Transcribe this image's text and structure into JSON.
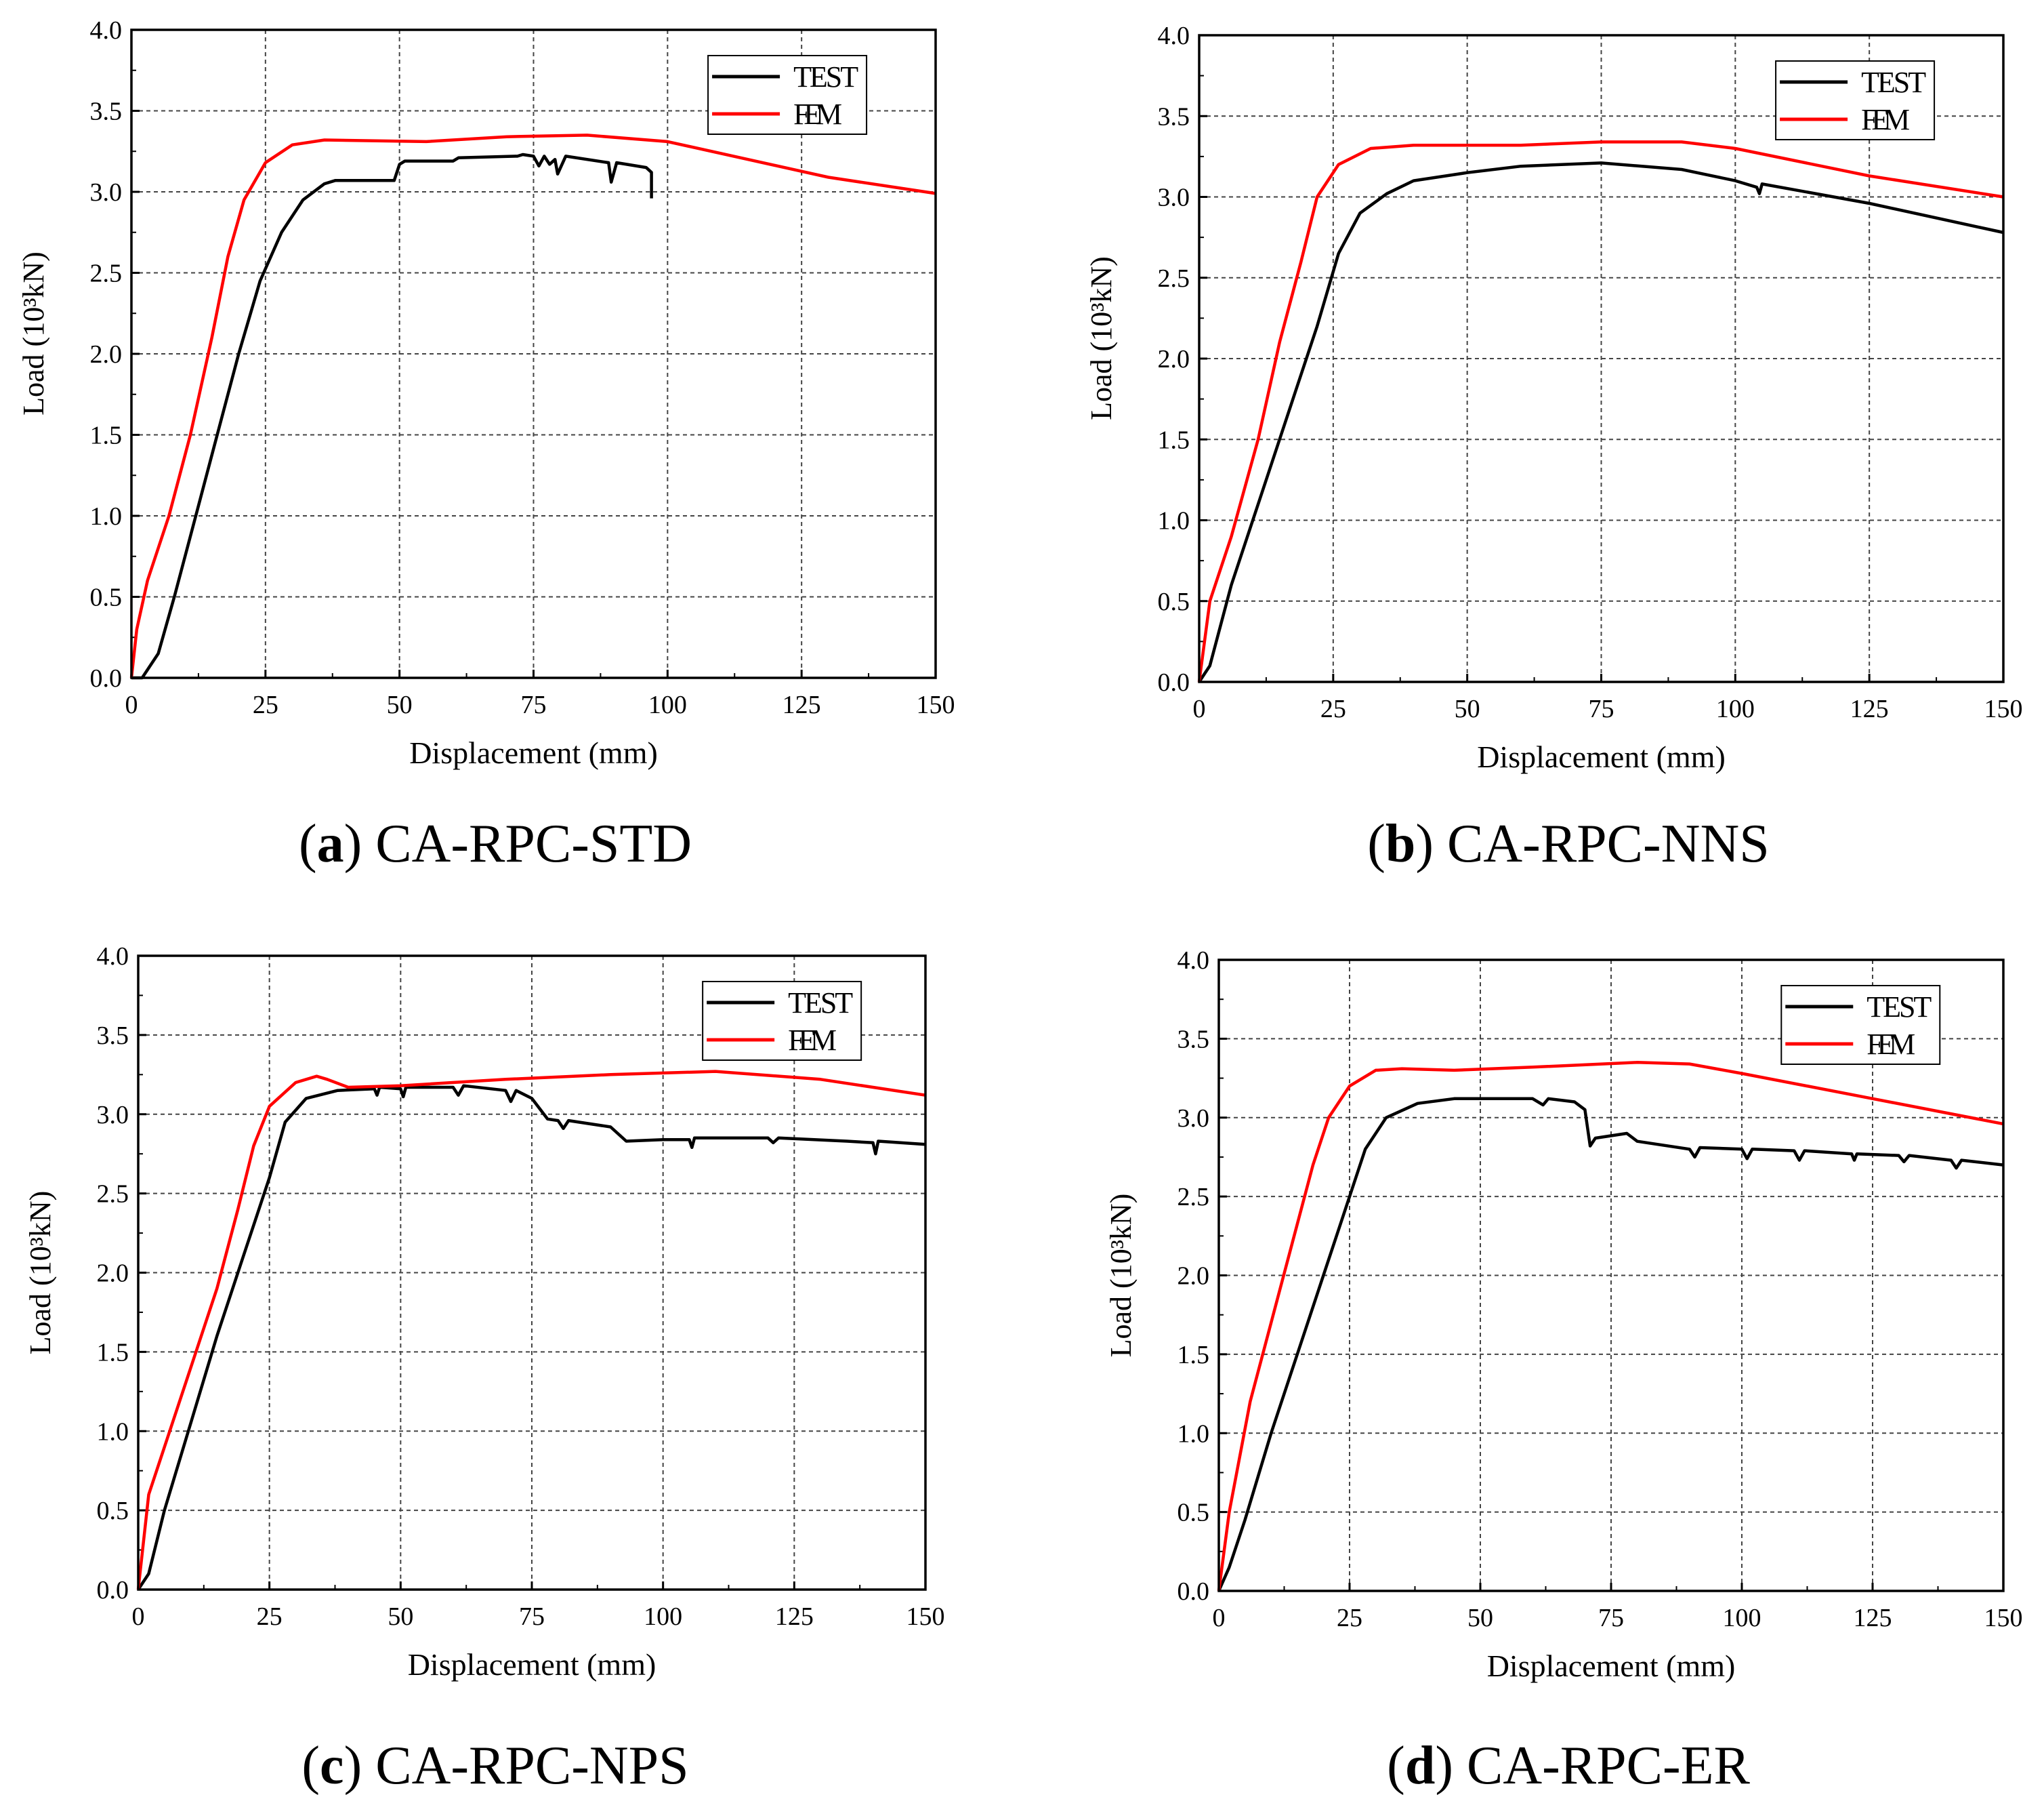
{
  "chart_data": [
    {
      "type": "line",
      "caption_letter": "a",
      "caption": "CA-RPC-STD",
      "xlabel": "Displacement (mm)",
      "ylabel": "Load (10³kN)",
      "xlim": [
        0,
        150
      ],
      "ylim": [
        0,
        4
      ],
      "xticks": [
        "0",
        "25",
        "50",
        "75",
        "100",
        "125",
        "150"
      ],
      "yticks": [
        "0.0",
        "0.5",
        "1.0",
        "1.5",
        "2.0",
        "2.5",
        "3.0",
        "3.5",
        "4.0"
      ],
      "grid": true,
      "legend": "top-right",
      "series": [
        {
          "name": "TEST",
          "color": "#000000",
          "points": [
            [
              0,
              0
            ],
            [
              2,
              0
            ],
            [
              5,
              0.15
            ],
            [
              8,
              0.5
            ],
            [
              12,
              1.0
            ],
            [
              16,
              1.5
            ],
            [
              20,
              2.0
            ],
            [
              24,
              2.45
            ],
            [
              28,
              2.75
            ],
            [
              32,
              2.95
            ],
            [
              36,
              3.05
            ],
            [
              38,
              3.07
            ],
            [
              49,
              3.07
            ],
            [
              50,
              3.17
            ],
            [
              51,
              3.19
            ],
            [
              60,
              3.19
            ],
            [
              61,
              3.21
            ],
            [
              72,
              3.22
            ],
            [
              73,
              3.23
            ],
            [
              75,
              3.22
            ],
            [
              76,
              3.16
            ],
            [
              77,
              3.22
            ],
            [
              78,
              3.17
            ],
            [
              79,
              3.2
            ],
            [
              79.5,
              3.11
            ],
            [
              81,
              3.22
            ],
            [
              89,
              3.18
            ],
            [
              89.5,
              3.06
            ],
            [
              90.5,
              3.18
            ],
            [
              96,
              3.15
            ],
            [
              97,
              3.12
            ],
            [
              97,
              2.96
            ]
          ]
        },
        {
          "name": "FEM",
          "color": "#ff0000",
          "points": [
            [
              0,
              0
            ],
            [
              1,
              0.3
            ],
            [
              3,
              0.6
            ],
            [
              7,
              1.0
            ],
            [
              11,
              1.5
            ],
            [
              15,
              2.1
            ],
            [
              18,
              2.6
            ],
            [
              21,
              2.95
            ],
            [
              25,
              3.18
            ],
            [
              30,
              3.29
            ],
            [
              36,
              3.32
            ],
            [
              55,
              3.31
            ],
            [
              70,
              3.34
            ],
            [
              85,
              3.35
            ],
            [
              100,
              3.31
            ],
            [
              115,
              3.2
            ],
            [
              130,
              3.09
            ],
            [
              150,
              2.99
            ]
          ]
        }
      ]
    },
    {
      "type": "line",
      "caption_letter": "b",
      "caption": "CA-RPC-NNS",
      "xlabel": "Displacement (mm)",
      "ylabel": "Load (10³kN)",
      "xlim": [
        0,
        150
      ],
      "ylim": [
        0,
        4
      ],
      "xticks": [
        "0",
        "25",
        "50",
        "75",
        "100",
        "125",
        "150"
      ],
      "yticks": [
        "0.0",
        "0.5",
        "1.0",
        "1.5",
        "2.0",
        "2.5",
        "3.0",
        "3.5",
        "4.0"
      ],
      "grid": true,
      "legend": "top-right",
      "series": [
        {
          "name": "TEST",
          "color": "#000000",
          "points": [
            [
              0,
              0
            ],
            [
              2,
              0.1
            ],
            [
              6,
              0.6
            ],
            [
              12,
              1.2
            ],
            [
              18,
              1.8
            ],
            [
              22,
              2.2
            ],
            [
              26,
              2.65
            ],
            [
              30,
              2.9
            ],
            [
              35,
              3.02
            ],
            [
              40,
              3.1
            ],
            [
              50,
              3.15
            ],
            [
              60,
              3.19
            ],
            [
              75,
              3.21
            ],
            [
              90,
              3.17
            ],
            [
              100,
              3.1
            ],
            [
              104,
              3.06
            ],
            [
              104.5,
              3.02
            ],
            [
              105,
              3.08
            ],
            [
              125,
              2.96
            ],
            [
              150,
              2.78
            ]
          ]
        },
        {
          "name": "FEM",
          "color": "#ff0000",
          "points": [
            [
              0,
              0
            ],
            [
              2,
              0.5
            ],
            [
              6,
              0.9
            ],
            [
              11,
              1.5
            ],
            [
              15,
              2.1
            ],
            [
              19,
              2.6
            ],
            [
              22,
              3.0
            ],
            [
              26,
              3.2
            ],
            [
              32,
              3.3
            ],
            [
              40,
              3.32
            ],
            [
              60,
              3.32
            ],
            [
              75,
              3.34
            ],
            [
              90,
              3.34
            ],
            [
              100,
              3.3
            ],
            [
              125,
              3.13
            ],
            [
              150,
              3.0
            ]
          ]
        }
      ]
    },
    {
      "type": "line",
      "caption_letter": "c",
      "caption": "CA-RPC-NPS",
      "xlabel": "Displacement (mm)",
      "ylabel": "Load (10³kN)",
      "xlim": [
        0,
        150
      ],
      "ylim": [
        0,
        4
      ],
      "xticks": [
        "0",
        "25",
        "50",
        "75",
        "100",
        "125",
        "150"
      ],
      "yticks": [
        "0.0",
        "0.5",
        "1.0",
        "1.5",
        "2.0",
        "2.5",
        "3.0",
        "3.5",
        "4.0"
      ],
      "grid": true,
      "legend": "top-right",
      "series": [
        {
          "name": "TEST",
          "color": "#000000",
          "points": [
            [
              0,
              0
            ],
            [
              2,
              0.1
            ],
            [
              5,
              0.5
            ],
            [
              10,
              1.05
            ],
            [
              15,
              1.6
            ],
            [
              20,
              2.1
            ],
            [
              25,
              2.6
            ],
            [
              28,
              2.95
            ],
            [
              32,
              3.1
            ],
            [
              38,
              3.15
            ],
            [
              45,
              3.16
            ],
            [
              45.5,
              3.12
            ],
            [
              46,
              3.17
            ],
            [
              50,
              3.16
            ],
            [
              50.5,
              3.11
            ],
            [
              51,
              3.17
            ],
            [
              60,
              3.17
            ],
            [
              61,
              3.12
            ],
            [
              62,
              3.18
            ],
            [
              70,
              3.15
            ],
            [
              71,
              3.08
            ],
            [
              72,
              3.15
            ],
            [
              75,
              3.1
            ],
            [
              78,
              2.97
            ],
            [
              80,
              2.96
            ],
            [
              81,
              2.91
            ],
            [
              82,
              2.96
            ],
            [
              90,
              2.92
            ],
            [
              93,
              2.83
            ],
            [
              100,
              2.84
            ],
            [
              105,
              2.84
            ],
            [
              105.5,
              2.79
            ],
            [
              106,
              2.85
            ],
            [
              120,
              2.85
            ],
            [
              121,
              2.82
            ],
            [
              122,
              2.85
            ],
            [
              135,
              2.83
            ],
            [
              140,
              2.82
            ],
            [
              140.5,
              2.75
            ],
            [
              141,
              2.83
            ],
            [
              150,
              2.81
            ]
          ]
        },
        {
          "name": "FEM",
          "color": "#ff0000",
          "points": [
            [
              0,
              0
            ],
            [
              2,
              0.6
            ],
            [
              6,
              1.0
            ],
            [
              10,
              1.4
            ],
            [
              15,
              1.9
            ],
            [
              19,
              2.4
            ],
            [
              22,
              2.8
            ],
            [
              25,
              3.05
            ],
            [
              30,
              3.2
            ],
            [
              34,
              3.24
            ],
            [
              36,
              3.22
            ],
            [
              40,
              3.17
            ],
            [
              50,
              3.18
            ],
            [
              70,
              3.22
            ],
            [
              90,
              3.25
            ],
            [
              110,
              3.27
            ],
            [
              130,
              3.22
            ],
            [
              150,
              3.12
            ]
          ]
        }
      ]
    },
    {
      "type": "line",
      "caption_letter": "d",
      "caption": "CA-RPC-ER",
      "xlabel": "Displacement (mm)",
      "ylabel": "Load (10³kN)",
      "xlim": [
        0,
        150
      ],
      "ylim": [
        0,
        4
      ],
      "xticks": [
        "0",
        "25",
        "50",
        "75",
        "100",
        "125",
        "150"
      ],
      "yticks": [
        "0.0",
        "0.5",
        "1.0",
        "1.5",
        "2.0",
        "2.5",
        "3.0",
        "3.5",
        "4.0"
      ],
      "grid": true,
      "legend": "top-right",
      "series": [
        {
          "name": "TEST",
          "color": "#000000",
          "points": [
            [
              0,
              0
            ],
            [
              2,
              0.15
            ],
            [
              5,
              0.45
            ],
            [
              10,
              1.0
            ],
            [
              15,
              1.5
            ],
            [
              20,
              2.0
            ],
            [
              24,
              2.4
            ],
            [
              28,
              2.8
            ],
            [
              32,
              3.0
            ],
            [
              38,
              3.09
            ],
            [
              45,
              3.12
            ],
            [
              60,
              3.12
            ],
            [
              62,
              3.08
            ],
            [
              63,
              3.12
            ],
            [
              68,
              3.1
            ],
            [
              70,
              3.05
            ],
            [
              71,
              2.82
            ],
            [
              72,
              2.87
            ],
            [
              78,
              2.9
            ],
            [
              80,
              2.85
            ],
            [
              90,
              2.8
            ],
            [
              91,
              2.75
            ],
            [
              92,
              2.81
            ],
            [
              100,
              2.8
            ],
            [
              101,
              2.74
            ],
            [
              102,
              2.8
            ],
            [
              110,
              2.79
            ],
            [
              111,
              2.73
            ],
            [
              112,
              2.79
            ],
            [
              121,
              2.77
            ],
            [
              121.5,
              2.73
            ],
            [
              122,
              2.77
            ],
            [
              130,
              2.76
            ],
            [
              131,
              2.72
            ],
            [
              132,
              2.76
            ],
            [
              140,
              2.73
            ],
            [
              141,
              2.68
            ],
            [
              142,
              2.73
            ],
            [
              150,
              2.7
            ]
          ]
        },
        {
          "name": "FEM",
          "color": "#ff0000",
          "points": [
            [
              0,
              0
            ],
            [
              2,
              0.5
            ],
            [
              6,
              1.2
            ],
            [
              10,
              1.7
            ],
            [
              14,
              2.2
            ],
            [
              18,
              2.7
            ],
            [
              21,
              3.0
            ],
            [
              25,
              3.2
            ],
            [
              30,
              3.3
            ],
            [
              35,
              3.31
            ],
            [
              45,
              3.3
            ],
            [
              60,
              3.32
            ],
            [
              80,
              3.35
            ],
            [
              90,
              3.34
            ],
            [
              100,
              3.28
            ],
            [
              125,
              3.12
            ],
            [
              150,
              2.96
            ]
          ]
        }
      ]
    }
  ]
}
